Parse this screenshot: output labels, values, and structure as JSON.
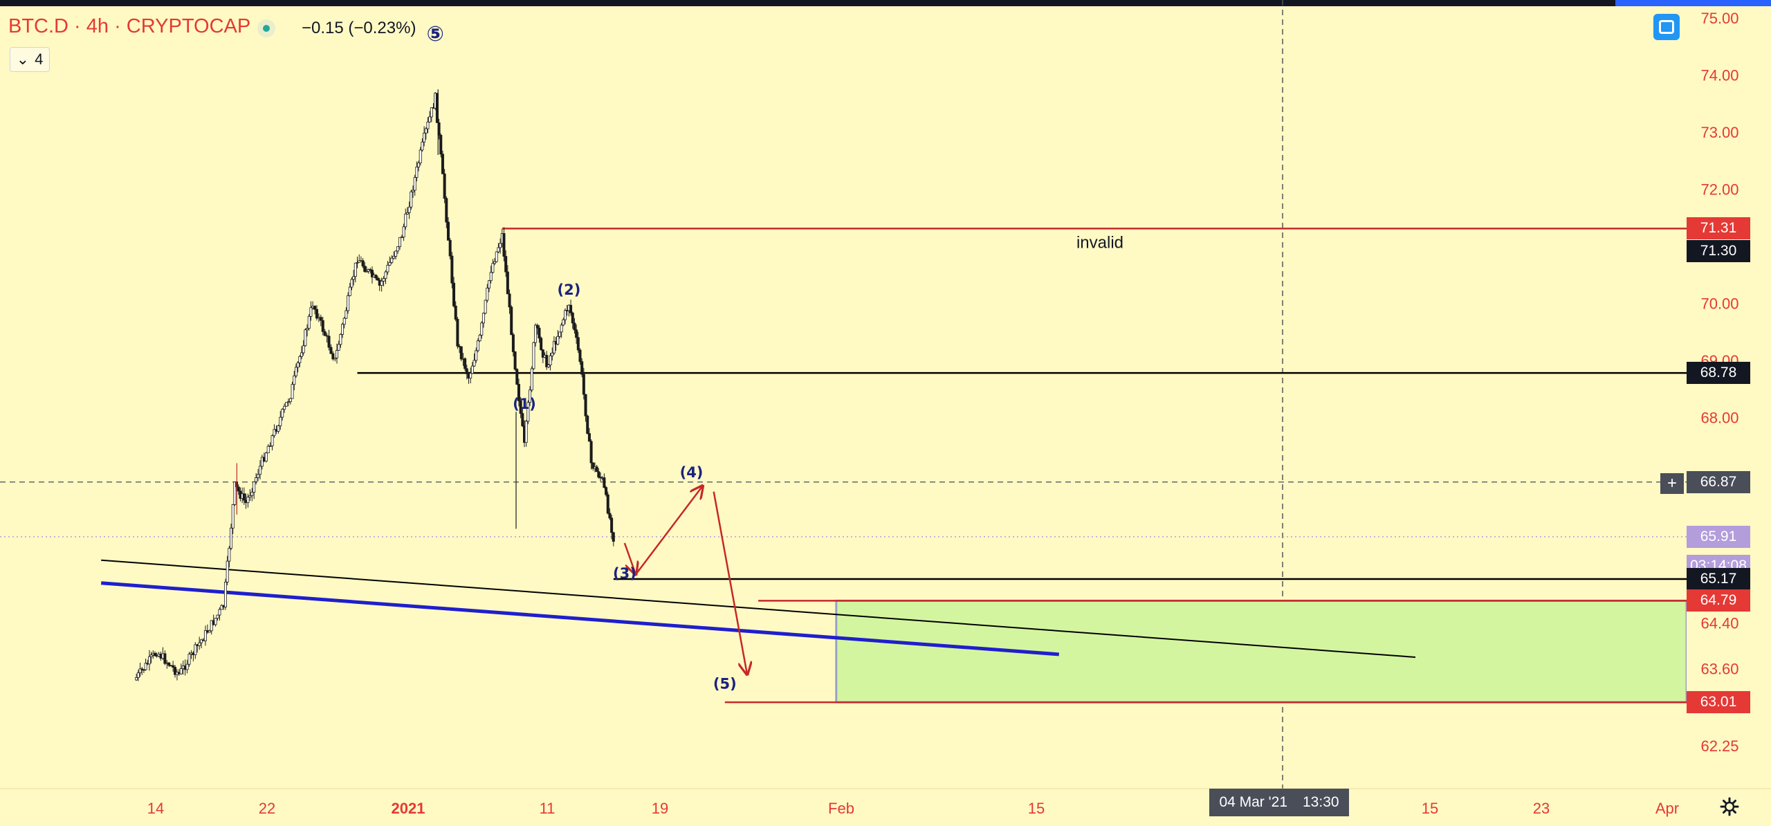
{
  "header": {
    "symbol": "BTC.D · 4h · CRYPTOCAP",
    "change": "−0.15 (−0.23%)",
    "indicator_count": "4",
    "status_dot_color": "#26a69a"
  },
  "chart_data": {
    "type": "candlestick",
    "symbol": "BTC.D",
    "interval": "4h",
    "exchange": "CRYPTOCAP",
    "y_axis": {
      "ticks": [
        "75.00",
        "74.00",
        "73.00",
        "72.00",
        "70.00",
        "69.00",
        "68.00",
        "64.40",
        "63.60",
        "62.25"
      ],
      "range": [
        62.0,
        75.0
      ]
    },
    "x_axis": {
      "ticks": [
        "14",
        "22",
        "2021",
        "11",
        "19",
        "Feb",
        "15",
        "15",
        "23",
        "Apr"
      ]
    },
    "price_path": [
      {
        "t": "Dec 7",
        "v": 63.4
      },
      {
        "t": "Dec 9",
        "v": 63.9
      },
      {
        "t": "Dec 11",
        "v": 63.5
      },
      {
        "t": "Dec 13",
        "v": 64.1
      },
      {
        "t": "Dec 15",
        "v": 64.7
      },
      {
        "t": "Dec 16",
        "v": 66.8
      },
      {
        "t": "Dec 17",
        "v": 66.5
      },
      {
        "t": "Dec 19",
        "v": 67.5
      },
      {
        "t": "Dec 21",
        "v": 68.4
      },
      {
        "t": "Dec 23",
        "v": 70.0
      },
      {
        "t": "Dec 25",
        "v": 69.0
      },
      {
        "t": "Dec 27",
        "v": 70.8
      },
      {
        "t": "Dec 29",
        "v": 70.3
      },
      {
        "t": "Dec 31",
        "v": 71.2
      },
      {
        "t": "Jan 2",
        "v": 72.9
      },
      {
        "t": "Jan 3",
        "v": 73.6
      },
      {
        "t": "Jan 4",
        "v": 71.5
      },
      {
        "t": "Jan 5",
        "v": 69.3
      },
      {
        "t": "Jan 6",
        "v": 68.7
      },
      {
        "t": "Jan 7",
        "v": 69.4
      },
      {
        "t": "Jan 8",
        "v": 70.6
      },
      {
        "t": "Jan 9",
        "v": 71.2
      },
      {
        "t": "Jan 10",
        "v": 69.2
      },
      {
        "t": "Jan 11",
        "v": 67.5
      },
      {
        "t": "Jan 12",
        "v": 69.6
      },
      {
        "t": "Jan 13",
        "v": 68.9
      },
      {
        "t": "Jan 15",
        "v": 70.0
      },
      {
        "t": "Jan 16",
        "v": 69.0
      },
      {
        "t": "Jan 17",
        "v": 67.2
      },
      {
        "t": "Jan 18",
        "v": 66.9
      },
      {
        "t": "Jan 19",
        "v": 65.9
      }
    ],
    "horizontal_levels": [
      {
        "price": 71.31,
        "label": "invalid",
        "color": "#c62828"
      },
      {
        "price": 68.78,
        "color": "#000000"
      },
      {
        "price": 65.17,
        "color": "#000000"
      },
      {
        "price": 64.79,
        "color": "#c62828"
      },
      {
        "price": 63.01,
        "color": "#c62828"
      }
    ],
    "trend_lines": [
      {
        "color": "#1f1fcc",
        "from": {
          "t": "Dec 4",
          "v": 65.1
        },
        "to": {
          "t": "Feb 28",
          "v": 63.85
        }
      },
      {
        "color": "#000000",
        "from": {
          "t": "Dec 4",
          "v": 65.5
        },
        "to": {
          "t": "Apr 1",
          "v": 63.8
        }
      }
    ],
    "wave_labels": [
      {
        "label": "⑤",
        "t": "Jan 3",
        "v": 74.6
      },
      {
        "label": "(1)",
        "t": "Jan 11",
        "v": 68.15
      },
      {
        "label": "(2)",
        "t": "Jan 15",
        "v": 70.15
      },
      {
        "label": "(3)",
        "t": "Jan 20",
        "v": 65.18
      },
      {
        "label": "(4)",
        "t": "Jan 26",
        "v": 66.95
      },
      {
        "label": "(5)",
        "t": "Jan 29",
        "v": 63.25
      }
    ],
    "projection": [
      {
        "t": "Jan 20",
        "v": 65.8
      },
      {
        "t": "Jan 21",
        "v": 65.25
      },
      {
        "t": "Jan 27",
        "v": 66.8
      },
      {
        "t": "Jan 28",
        "v": 66.7
      },
      {
        "t": "Jan 31",
        "v": 63.5
      }
    ],
    "target_zone": {
      "from": "Feb 8",
      "to": "Apr 2",
      "top": 64.79,
      "bottom": 63.01,
      "color": "#d4f5a0"
    },
    "price_labels": [
      {
        "value": "71.31",
        "bg": "#e53935"
      },
      {
        "value": "71.30",
        "bg": "#131722"
      },
      {
        "value": "68.78",
        "bg": "#131722"
      },
      {
        "value": "66.87",
        "bg": "#4a4e59"
      },
      {
        "value": "65.91",
        "bg": "#b39ddb"
      },
      {
        "value": "03:14:08",
        "bg": "#b39ddb"
      },
      {
        "value": "65.17",
        "bg": "#131722"
      },
      {
        "value": "64.79",
        "bg": "#e53935"
      },
      {
        "value": "63.01",
        "bg": "#e53935"
      }
    ],
    "current_price": 65.91,
    "countdown": "03:14:08",
    "crosshair": {
      "price": "66.87",
      "date": "04 Mar '21",
      "time": "13:30"
    }
  }
}
